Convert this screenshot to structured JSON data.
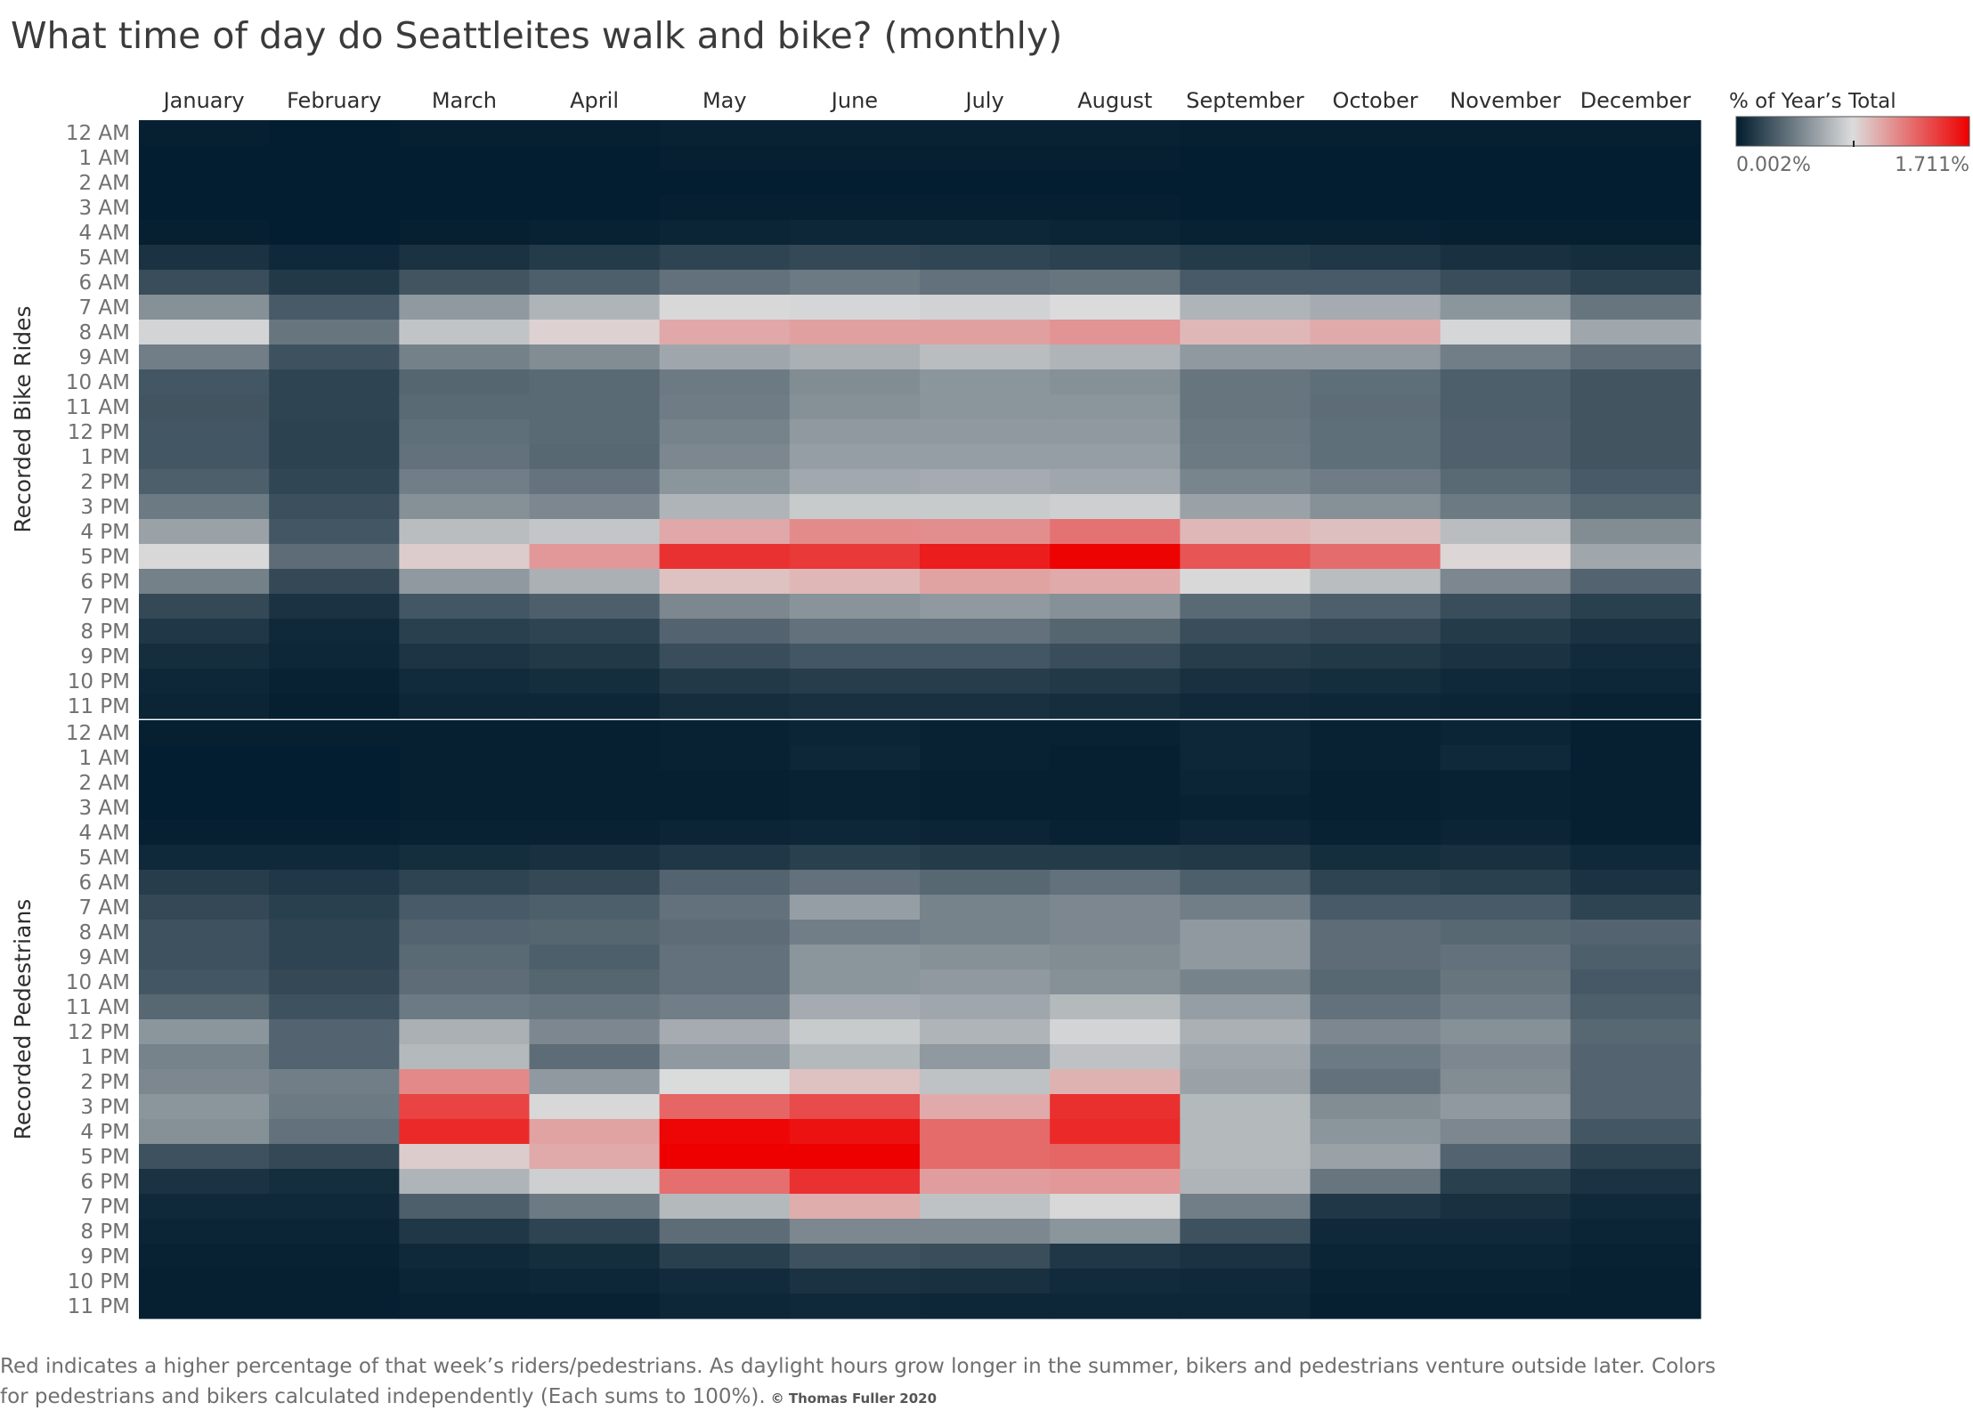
{
  "title": "What time of day do Seattleites walk and bike?  (monthly)",
  "footnote": "Red indicates a higher percentage of that week’s riders/pedestrians. As daylight hours grow longer in the summer, bikers and pedestrians venture outside later. Colors for pedestrians and bikers calculated independently (Each sums to 100%).",
  "credit": "© Thomas Fuller 2020",
  "colors": {
    "low": "#011c2e",
    "mid": "#dcdcdc",
    "high": "#ee0000",
    "mid_stop": 0.5
  },
  "chart_data": {
    "type": "heatmap",
    "title": "What time of day do Seattleites walk and bike?  (monthly)",
    "x": [
      "January",
      "February",
      "March",
      "April",
      "May",
      "June",
      "July",
      "August",
      "September",
      "October",
      "November",
      "December"
    ],
    "y": [
      "12 AM",
      "1 AM",
      "2 AM",
      "3 AM",
      "4 AM",
      "5 AM",
      "6 AM",
      "7 AM",
      "8 AM",
      "9 AM",
      "10 AM",
      "11 AM",
      "12 PM",
      "1 PM",
      "2 PM",
      "3 PM",
      "4 PM",
      "5 PM",
      "6 PM",
      "7 PM",
      "8 PM",
      "9 PM",
      "10 PM",
      "11 PM"
    ],
    "legend": {
      "title": "% of Year’s Total",
      "min_label": "0.002%",
      "max_label": "1.711%",
      "min": 0.002,
      "max": 1.711,
      "placement": "top-right"
    },
    "panels": [
      {
        "name": "Recorded Bike Rides",
        "values": [
          [
            0.02,
            0.01,
            0.02,
            0.02,
            0.03,
            0.03,
            0.03,
            0.03,
            0.02,
            0.02,
            0.02,
            0.02
          ],
          [
            0.01,
            0.01,
            0.01,
            0.01,
            0.02,
            0.02,
            0.02,
            0.02,
            0.01,
            0.01,
            0.01,
            0.01
          ],
          [
            0.01,
            0.01,
            0.01,
            0.01,
            0.01,
            0.01,
            0.01,
            0.01,
            0.01,
            0.01,
            0.01,
            0.01
          ],
          [
            0.01,
            0.01,
            0.01,
            0.01,
            0.02,
            0.02,
            0.02,
            0.02,
            0.01,
            0.01,
            0.01,
            0.01
          ],
          [
            0.02,
            0.01,
            0.02,
            0.03,
            0.04,
            0.05,
            0.05,
            0.04,
            0.03,
            0.03,
            0.02,
            0.02
          ],
          [
            0.1,
            0.06,
            0.1,
            0.14,
            0.18,
            0.2,
            0.19,
            0.17,
            0.14,
            0.12,
            0.09,
            0.08
          ],
          [
            0.22,
            0.13,
            0.25,
            0.3,
            0.38,
            0.42,
            0.38,
            0.4,
            0.28,
            0.28,
            0.22,
            0.17
          ],
          [
            0.52,
            0.28,
            0.56,
            0.68,
            0.84,
            0.83,
            0.81,
            0.86,
            0.68,
            0.64,
            0.54,
            0.4
          ],
          [
            0.82,
            0.4,
            0.75,
            0.9,
            1.06,
            1.09,
            1.09,
            1.14,
            1.0,
            1.05,
            0.83,
            0.62
          ],
          [
            0.44,
            0.24,
            0.45,
            0.5,
            0.62,
            0.66,
            0.72,
            0.68,
            0.56,
            0.56,
            0.44,
            0.36
          ],
          [
            0.26,
            0.18,
            0.33,
            0.35,
            0.42,
            0.5,
            0.54,
            0.52,
            0.4,
            0.37,
            0.3,
            0.25
          ],
          [
            0.25,
            0.18,
            0.35,
            0.35,
            0.43,
            0.52,
            0.54,
            0.54,
            0.4,
            0.36,
            0.3,
            0.25
          ],
          [
            0.26,
            0.17,
            0.37,
            0.35,
            0.46,
            0.56,
            0.56,
            0.56,
            0.41,
            0.37,
            0.31,
            0.25
          ],
          [
            0.26,
            0.17,
            0.38,
            0.34,
            0.48,
            0.58,
            0.58,
            0.58,
            0.42,
            0.37,
            0.31,
            0.25
          ],
          [
            0.3,
            0.19,
            0.44,
            0.39,
            0.54,
            0.63,
            0.64,
            0.62,
            0.47,
            0.43,
            0.35,
            0.28
          ],
          [
            0.42,
            0.23,
            0.52,
            0.48,
            0.68,
            0.78,
            0.78,
            0.8,
            0.6,
            0.52,
            0.42,
            0.34
          ],
          [
            0.6,
            0.26,
            0.72,
            0.76,
            1.06,
            1.17,
            1.16,
            1.27,
            1.0,
            0.97,
            0.72,
            0.5
          ],
          [
            0.84,
            0.36,
            0.92,
            1.12,
            1.52,
            1.49,
            1.6,
            1.7,
            1.38,
            1.29,
            0.88,
            0.62
          ],
          [
            0.45,
            0.2,
            0.56,
            0.66,
            0.96,
            1.0,
            1.08,
            1.05,
            0.84,
            0.72,
            0.48,
            0.32
          ],
          [
            0.2,
            0.1,
            0.26,
            0.3,
            0.48,
            0.53,
            0.56,
            0.52,
            0.35,
            0.3,
            0.22,
            0.16
          ],
          [
            0.12,
            0.06,
            0.16,
            0.18,
            0.32,
            0.38,
            0.38,
            0.33,
            0.22,
            0.2,
            0.14,
            0.1
          ],
          [
            0.08,
            0.05,
            0.11,
            0.13,
            0.22,
            0.26,
            0.26,
            0.22,
            0.15,
            0.13,
            0.1,
            0.07
          ],
          [
            0.05,
            0.03,
            0.07,
            0.08,
            0.13,
            0.15,
            0.15,
            0.13,
            0.09,
            0.08,
            0.06,
            0.05
          ],
          [
            0.04,
            0.02,
            0.05,
            0.05,
            0.08,
            0.09,
            0.09,
            0.08,
            0.06,
            0.05,
            0.04,
            0.03
          ]
        ]
      },
      {
        "name": "Recorded Pedestrians",
        "values": [
          [
            0.02,
            0.02,
            0.02,
            0.02,
            0.03,
            0.04,
            0.03,
            0.03,
            0.05,
            0.03,
            0.04,
            0.02
          ],
          [
            0.01,
            0.01,
            0.02,
            0.02,
            0.03,
            0.05,
            0.03,
            0.02,
            0.05,
            0.03,
            0.06,
            0.02
          ],
          [
            0.01,
            0.01,
            0.02,
            0.02,
            0.02,
            0.03,
            0.02,
            0.02,
            0.04,
            0.02,
            0.03,
            0.02
          ],
          [
            0.01,
            0.01,
            0.02,
            0.02,
            0.02,
            0.03,
            0.02,
            0.02,
            0.03,
            0.02,
            0.03,
            0.02
          ],
          [
            0.02,
            0.02,
            0.03,
            0.03,
            0.04,
            0.05,
            0.04,
            0.03,
            0.05,
            0.03,
            0.04,
            0.02
          ],
          [
            0.06,
            0.06,
            0.08,
            0.09,
            0.12,
            0.16,
            0.14,
            0.14,
            0.13,
            0.08,
            0.09,
            0.06
          ],
          [
            0.15,
            0.12,
            0.18,
            0.2,
            0.32,
            0.38,
            0.34,
            0.38,
            0.3,
            0.18,
            0.16,
            0.1
          ],
          [
            0.2,
            0.16,
            0.28,
            0.3,
            0.38,
            0.58,
            0.46,
            0.48,
            0.44,
            0.28,
            0.28,
            0.18
          ],
          [
            0.24,
            0.18,
            0.32,
            0.33,
            0.36,
            0.44,
            0.46,
            0.48,
            0.56,
            0.36,
            0.34,
            0.32
          ],
          [
            0.24,
            0.18,
            0.35,
            0.3,
            0.38,
            0.54,
            0.52,
            0.5,
            0.56,
            0.36,
            0.38,
            0.3
          ],
          [
            0.26,
            0.2,
            0.36,
            0.33,
            0.38,
            0.54,
            0.56,
            0.52,
            0.46,
            0.34,
            0.4,
            0.27
          ],
          [
            0.34,
            0.24,
            0.42,
            0.4,
            0.44,
            0.64,
            0.62,
            0.7,
            0.58,
            0.38,
            0.44,
            0.3
          ],
          [
            0.54,
            0.32,
            0.66,
            0.48,
            0.64,
            0.78,
            0.68,
            0.82,
            0.66,
            0.48,
            0.52,
            0.34
          ],
          [
            0.46,
            0.32,
            0.7,
            0.36,
            0.56,
            0.7,
            0.56,
            0.74,
            0.62,
            0.42,
            0.48,
            0.32
          ],
          [
            0.48,
            0.44,
            1.18,
            0.56,
            0.85,
            0.96,
            0.74,
            1.02,
            0.6,
            0.38,
            0.5,
            0.32
          ],
          [
            0.54,
            0.42,
            1.45,
            0.84,
            1.32,
            1.42,
            1.05,
            1.53,
            0.7,
            0.5,
            0.56,
            0.32
          ],
          [
            0.52,
            0.38,
            1.55,
            1.08,
            1.69,
            1.64,
            1.3,
            1.55,
            0.7,
            0.54,
            0.48,
            0.26
          ],
          [
            0.24,
            0.2,
            0.92,
            1.05,
            1.71,
            1.71,
            1.3,
            1.32,
            0.7,
            0.6,
            0.32,
            0.17
          ],
          [
            0.1,
            0.08,
            0.68,
            0.8,
            1.28,
            1.52,
            1.1,
            1.12,
            0.68,
            0.4,
            0.16,
            0.1
          ],
          [
            0.06,
            0.06,
            0.3,
            0.42,
            0.7,
            1.04,
            0.74,
            0.84,
            0.44,
            0.12,
            0.09,
            0.06
          ],
          [
            0.04,
            0.04,
            0.12,
            0.18,
            0.36,
            0.48,
            0.48,
            0.54,
            0.24,
            0.06,
            0.06,
            0.04
          ],
          [
            0.03,
            0.03,
            0.06,
            0.08,
            0.16,
            0.24,
            0.22,
            0.12,
            0.1,
            0.04,
            0.04,
            0.03
          ],
          [
            0.02,
            0.02,
            0.04,
            0.05,
            0.07,
            0.1,
            0.09,
            0.07,
            0.06,
            0.03,
            0.03,
            0.02
          ],
          [
            0.02,
            0.02,
            0.03,
            0.03,
            0.05,
            0.06,
            0.05,
            0.05,
            0.05,
            0.02,
            0.02,
            0.02
          ]
        ]
      }
    ]
  }
}
